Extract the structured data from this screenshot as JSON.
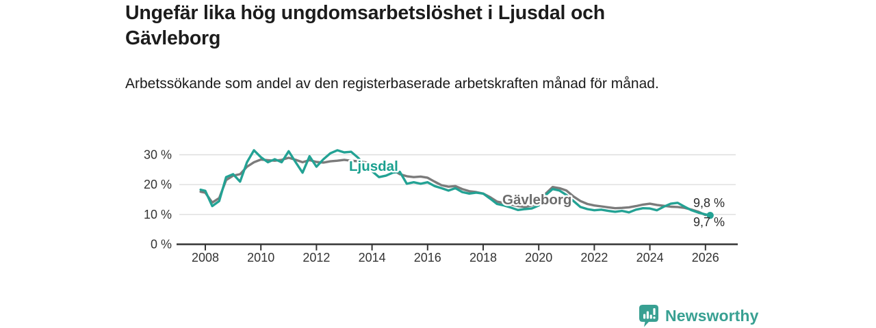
{
  "header": {
    "title": "Ungefär lika hög ungdomsarbetslöshet i Ljusdal och Gävleborg",
    "subtitle": "Arbetssökande som andel av den registerbaserade arbetskraften månad för månad."
  },
  "footer": {
    "brand": "Newsworthy",
    "logo_icon": "bar-chart-speech-bubble-icon"
  },
  "colors": {
    "ljusdal": "#23a294",
    "ljusdal_label": "#1aa08f",
    "gavleborg": "#7b7b7b",
    "gavleborg_label": "#6d6d6d",
    "axis": "#333333",
    "grid": "#dedede",
    "tick_text": "#333333",
    "value_label_text": "#2b2b2b",
    "brand_teal": "#38a092"
  },
  "chart_data": {
    "type": "line",
    "title": "Ungefär lika hög ungdomsarbetslöshet i Ljusdal och Gävleborg",
    "subtitle": "Arbetssökande som andel av den registerbaserade arbetskraften månad för månad.",
    "xlabel": "",
    "ylabel": "",
    "unit": "%",
    "xlim": [
      2007.8,
      2027.15
    ],
    "ylim": [
      0,
      33
    ],
    "grid": "horizontal",
    "legend_position": "inline-labels",
    "xticks": [
      2008,
      2010,
      2012,
      2014,
      2016,
      2018,
      2020,
      2022,
      2024,
      2026
    ],
    "yticks": [
      {
        "value": 0,
        "label": "0 %"
      },
      {
        "value": 10,
        "label": "10 %"
      },
      {
        "value": 20,
        "label": "20 %"
      },
      {
        "value": 30,
        "label": "30 %"
      }
    ],
    "x": [
      2007.83,
      2008,
      2008.25,
      2008.5,
      2008.75,
      2009,
      2009.25,
      2009.5,
      2009.75,
      2010,
      2010.25,
      2010.5,
      2010.75,
      2011,
      2011.25,
      2011.5,
      2011.75,
      2012,
      2012.25,
      2012.5,
      2012.75,
      2013,
      2013.25,
      2013.5,
      2013.75,
      2014,
      2014.25,
      2014.5,
      2014.75,
      2015,
      2015.25,
      2015.5,
      2015.75,
      2016,
      2016.25,
      2016.5,
      2016.75,
      2017,
      2017.25,
      2017.5,
      2017.75,
      2018,
      2018.25,
      2018.5,
      2018.75,
      2019,
      2019.25,
      2019.5,
      2019.75,
      2020,
      2020.25,
      2020.5,
      2020.75,
      2021,
      2021.25,
      2021.5,
      2021.75,
      2022,
      2022.25,
      2022.5,
      2022.75,
      2023,
      2023.25,
      2023.5,
      2023.75,
      2024,
      2024.25,
      2024.5,
      2024.75,
      2025,
      2025.25,
      2025.5,
      2025.75,
      2026,
      2026.17
    ],
    "series": [
      {
        "name": "Ljusdal",
        "color": "#23a294",
        "last_value_label": "9,7 %",
        "values": [
          18.3,
          17.9,
          12.8,
          14.5,
          22.5,
          23.5,
          21.0,
          27.5,
          31.5,
          29.2,
          27.5,
          28.5,
          27.5,
          31.2,
          27.5,
          24.0,
          29.5,
          26.0,
          28.5,
          30.5,
          31.5,
          30.8,
          31.0,
          29.0,
          26.5,
          24.5,
          22.5,
          23.0,
          24.0,
          24.3,
          20.3,
          20.8,
          20.3,
          20.8,
          19.5,
          18.8,
          18.0,
          18.8,
          17.5,
          17.0,
          17.3,
          17.0,
          15.3,
          13.5,
          13.0,
          12.3,
          11.5,
          11.8,
          12.0,
          13.0,
          16.5,
          18.5,
          18.0,
          16.5,
          14.5,
          12.5,
          11.8,
          11.4,
          11.6,
          11.2,
          10.9,
          11.2,
          10.7,
          11.6,
          12.1,
          12.0,
          11.4,
          12.6,
          13.6,
          13.9,
          12.6,
          11.4,
          10.6,
          10.0,
          9.7
        ]
      },
      {
        "name": "Gävleborg",
        "color": "#7b7b7b",
        "last_value_label": "9,8 %",
        "values": [
          17.6,
          17.3,
          14.0,
          15.5,
          21.5,
          23.0,
          23.5,
          26.0,
          27.5,
          28.4,
          28.2,
          28.0,
          28.3,
          29.0,
          28.3,
          27.5,
          28.2,
          27.6,
          27.4,
          27.8,
          28.0,
          28.3,
          28.0,
          27.8,
          27.5,
          27.0,
          26.5,
          26.0,
          25.0,
          23.5,
          22.8,
          22.5,
          22.7,
          22.3,
          21.0,
          19.8,
          19.3,
          19.5,
          18.5,
          17.8,
          17.5,
          17.0,
          15.8,
          14.3,
          13.8,
          13.3,
          12.8,
          12.5,
          13.0,
          13.8,
          17.0,
          19.2,
          18.8,
          18.0,
          16.0,
          14.5,
          13.5,
          13.0,
          12.7,
          12.4,
          12.1,
          12.2,
          12.4,
          12.8,
          13.3,
          13.6,
          13.2,
          12.9,
          12.6,
          12.5,
          12.2,
          11.6,
          10.9,
          9.8,
          null
        ]
      }
    ],
    "inline_series_labels": [
      {
        "series": "Ljusdal",
        "text": "Ljusdal",
        "color": "#1aa08f"
      },
      {
        "series": "Gävleborg",
        "text": "Gävleborg",
        "color": "#6d6d6d"
      }
    ],
    "last_value_labels": [
      {
        "series": "Gävleborg",
        "label": "9,8 %"
      },
      {
        "series": "Ljusdal",
        "label": "9,7 %"
      }
    ]
  }
}
